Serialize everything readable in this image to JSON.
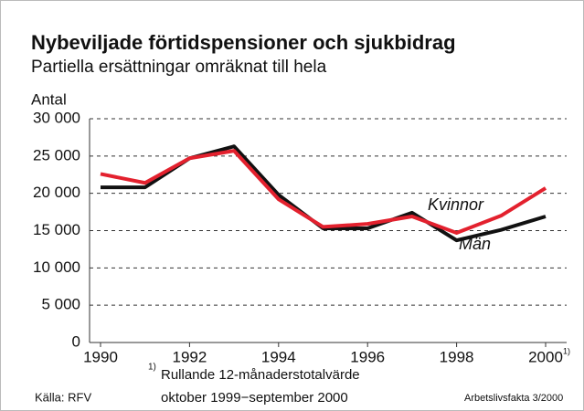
{
  "chart_data": {
    "type": "line",
    "title": "Nybeviljade förtidspensioner och sjukbidrag",
    "subtitle": "Partiella ersättningar omräknat till hela",
    "y_label": "Antal",
    "x": [
      1990,
      1991,
      1992,
      1993,
      1994,
      1995,
      1996,
      1997,
      1998,
      1999,
      2000
    ],
    "series": [
      {
        "name": "Män",
        "color": "#111111",
        "values": [
          20800,
          20800,
          24700,
          26300,
          19800,
          15300,
          15300,
          17400,
          13700,
          15100,
          16900
        ]
      },
      {
        "name": "Kvinnor",
        "color": "#e3212e",
        "values": [
          22600,
          21400,
          24700,
          25700,
          19200,
          15500,
          15900,
          16900,
          14700,
          17000,
          20700
        ]
      }
    ],
    "xlim": [
      1990,
      2000
    ],
    "xticks": [
      1990,
      1992,
      1994,
      1996,
      1998,
      2000
    ],
    "xtick_note": "1)",
    "ylim": [
      0,
      30000
    ],
    "yticks": [
      0,
      {
        "value": 5000,
        "label": "5 000"
      },
      {
        "value": 10000,
        "label": "10 000"
      },
      {
        "value": 15000,
        "label": "15 000"
      },
      {
        "value": 20000,
        "label": "20 000"
      },
      {
        "value": 25000,
        "label": "25 000"
      },
      {
        "value": 30000,
        "label": "30 000"
      }
    ],
    "grid": true,
    "footnote": {
      "marker": "1)",
      "lines": [
        "Rullande 12-månaderstotalvärde",
        "oktober 1999−september 2000"
      ]
    },
    "source": "Källa: RFV",
    "publication": "Arbetslivsfakta 3/2000"
  }
}
